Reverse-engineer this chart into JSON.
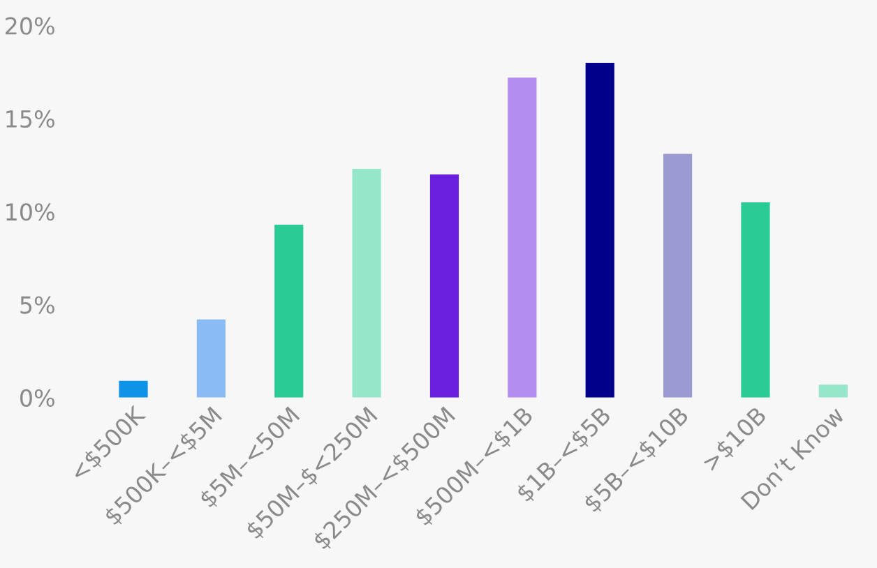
{
  "chart_data": {
    "type": "bar",
    "categories": [
      "<$500K",
      "$500K–<$5M",
      "$5M–<50M",
      "$50M–$<250M",
      "$250M–<$500M",
      "$500M–<$1B",
      "$1B–<$5B",
      "$5B–<$10B",
      ">$10B",
      "Don’t Know"
    ],
    "values": [
      0.9,
      4.2,
      9.3,
      12.3,
      12.0,
      17.2,
      18.0,
      13.1,
      10.5,
      0.7
    ],
    "colors": [
      "#0f93e8",
      "#8abbf4",
      "#2acb94",
      "#96e6ca",
      "#6a1fde",
      "#b48eee",
      "#00008b",
      "#9b9ad0",
      "#2acb94",
      "#96e6ca"
    ],
    "ylim": [
      0,
      20
    ],
    "yticks": [
      {
        "value": 0,
        "label": "0%"
      },
      {
        "value": 5,
        "label": "5%"
      },
      {
        "value": 10,
        "label": "10%"
      },
      {
        "value": 15,
        "label": "15%"
      },
      {
        "value": 20,
        "label": "20%"
      }
    ],
    "grid": false
  }
}
